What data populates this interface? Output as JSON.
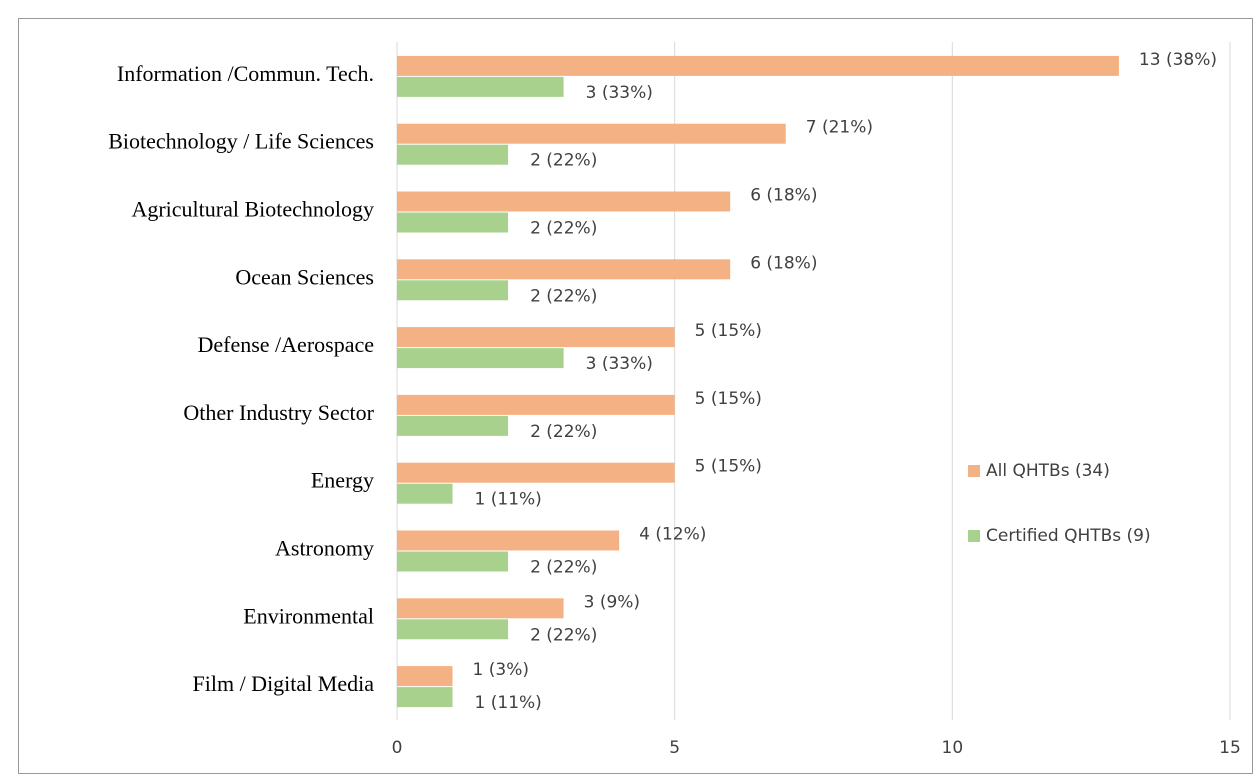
{
  "chart_data": {
    "type": "bar",
    "orientation": "horizontal",
    "categories": [
      "Information /Commun. Tech.",
      "Biotechnology / Life Sciences",
      "Agricultural Biotechnology",
      "Ocean Sciences",
      "Defense /Aerospace",
      "Other Industry Sector",
      "Energy",
      "Astronomy",
      "Environmental",
      "Film / Digital Media"
    ],
    "series": [
      {
        "name": "All QHTBs (34)",
        "color": "#f4b183",
        "values": [
          13,
          7,
          6,
          6,
          5,
          5,
          5,
          4,
          3,
          1
        ],
        "value_labels": [
          "13 (38%)",
          "7 (21%)",
          "6 (18%)",
          "6 (18%)",
          "5 (15%)",
          "5 (15%)",
          "5 (15%)",
          "4 (12%)",
          "3 (9%)",
          "1 (3%)"
        ]
      },
      {
        "name": "Certified QHTBs (9)",
        "color": "#a9d18e",
        "values": [
          3,
          2,
          2,
          2,
          3,
          2,
          1,
          2,
          2,
          1
        ],
        "value_labels": [
          "3 (33%)",
          "2 (22%)",
          "2 (22%)",
          "2 (22%)",
          "3 (33%)",
          "2 (22%)",
          "1 (11%)",
          "2 (22%)",
          "2 (22%)",
          "1 (11%)"
        ]
      }
    ],
    "xlim": [
      0,
      15
    ],
    "xticks": [
      0,
      5,
      10,
      15
    ],
    "grid": true,
    "legend": "right"
  }
}
